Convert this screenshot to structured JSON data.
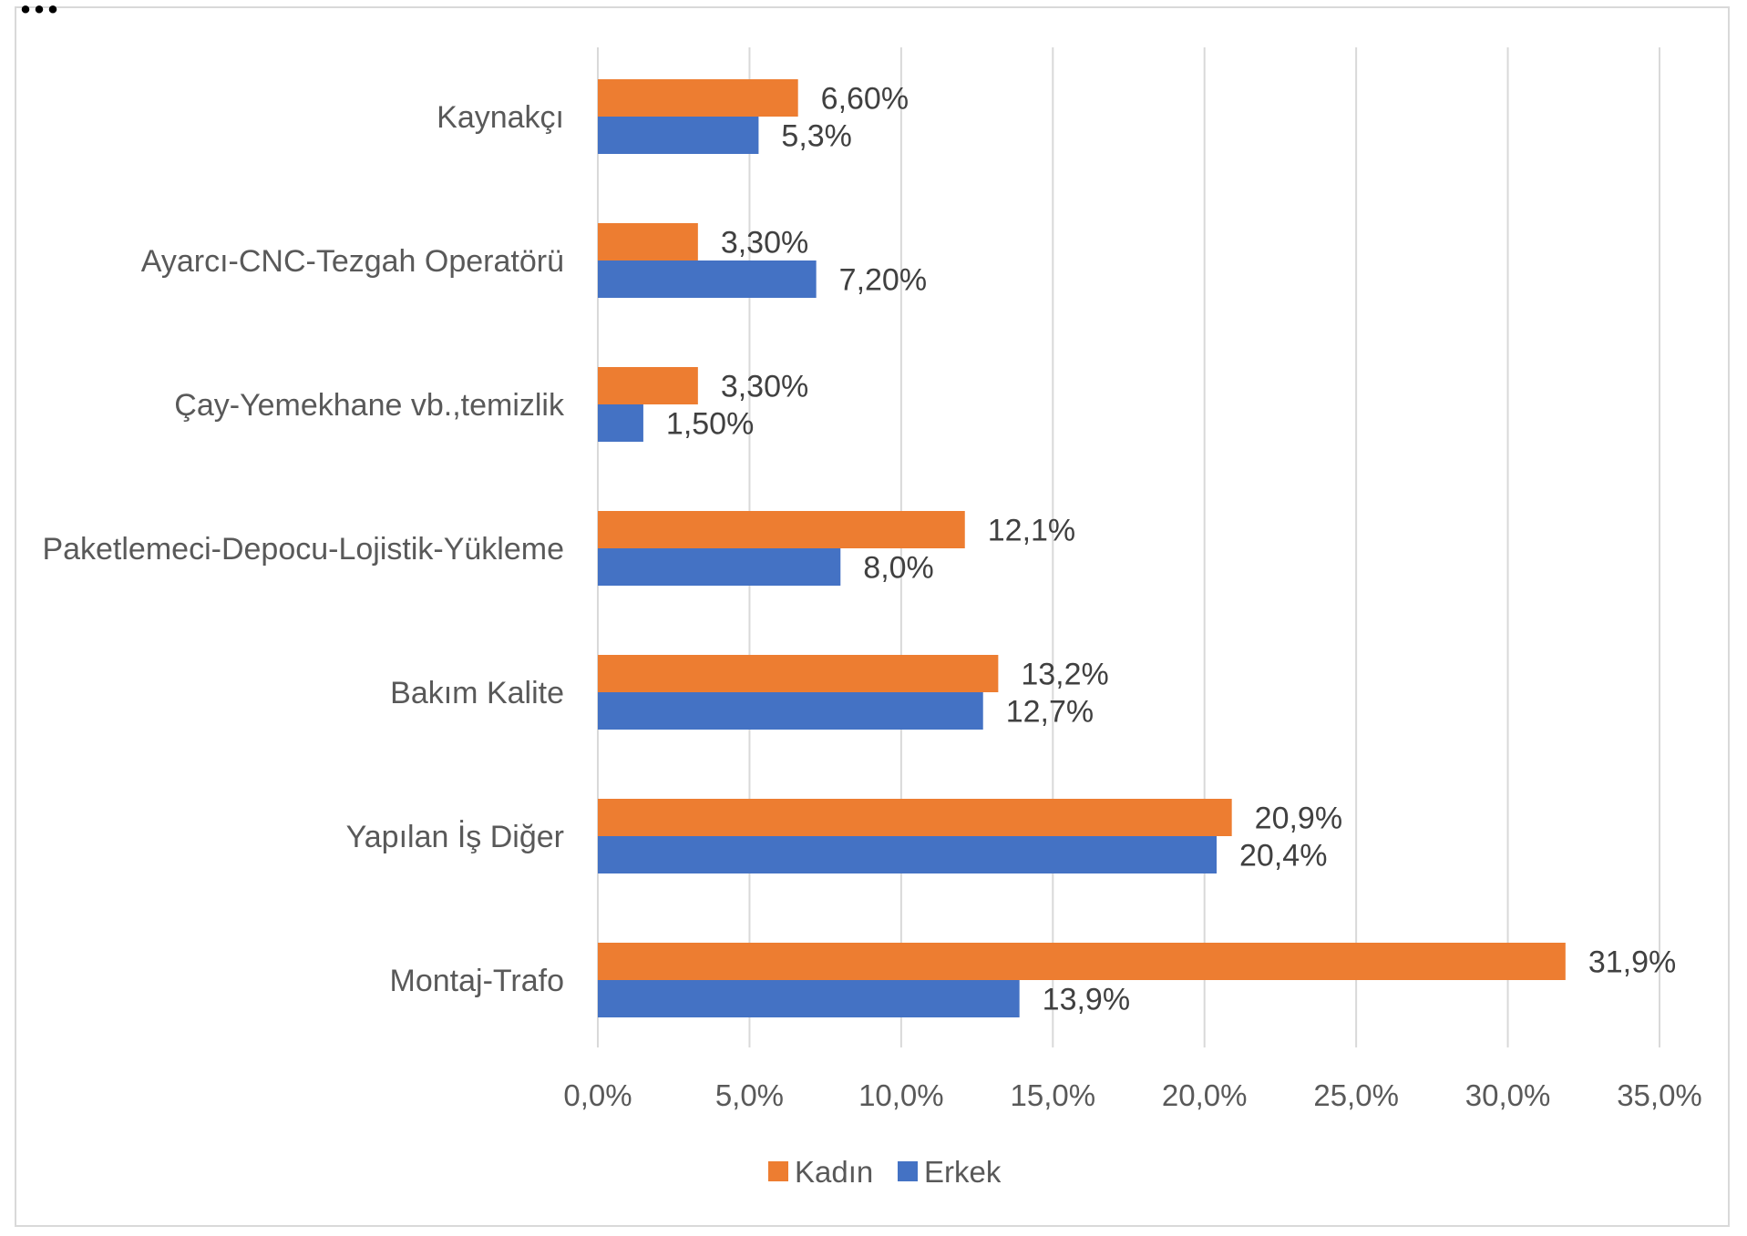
{
  "heading_fragment": "…",
  "chart_data": {
    "type": "bar",
    "orientation": "horizontal",
    "title": "",
    "xlabel": "",
    "ylabel": "",
    "categories": [
      "Kaynakçı",
      "Ayarcı-CNC-Tezgah Operatörü",
      "Çay-Yemekhane vb.,temizlik",
      "Paketlemeci-Depocu-Lojistik-Yükleme",
      "Bakım Kalite",
      "Yapılan İş Diğer",
      "Montaj-Trafo"
    ],
    "series": [
      {
        "name": "Kadın",
        "color": "#ED7D31",
        "values": [
          6.6,
          3.3,
          3.3,
          12.1,
          13.2,
          20.9,
          31.9
        ],
        "labels": [
          "6,60%",
          "3,30%",
          "3,30%",
          "12,1%",
          "13,2%",
          "20,9%",
          "31,9%"
        ]
      },
      {
        "name": "Erkek",
        "color": "#4472C4",
        "values": [
          5.3,
          7.2,
          1.5,
          8.0,
          12.7,
          20.4,
          13.9
        ],
        "labels": [
          "5,3%",
          "7,20%",
          "1,50%",
          "8,0%",
          "12,7%",
          "20,4%",
          "13,9%"
        ]
      }
    ],
    "xlim": [
      0,
      35
    ],
    "xticks": [
      0,
      5,
      10,
      15,
      20,
      25,
      30,
      35
    ],
    "xtick_labels": [
      "0,0%",
      "5,0%",
      "10,0%",
      "15,0%",
      "20,0%",
      "25,0%",
      "30,0%",
      "35,0%"
    ],
    "grid": true,
    "legend_position": "bottom-center",
    "gridline_color": "#D9D9D9",
    "border_color": "#D9D9D9"
  }
}
